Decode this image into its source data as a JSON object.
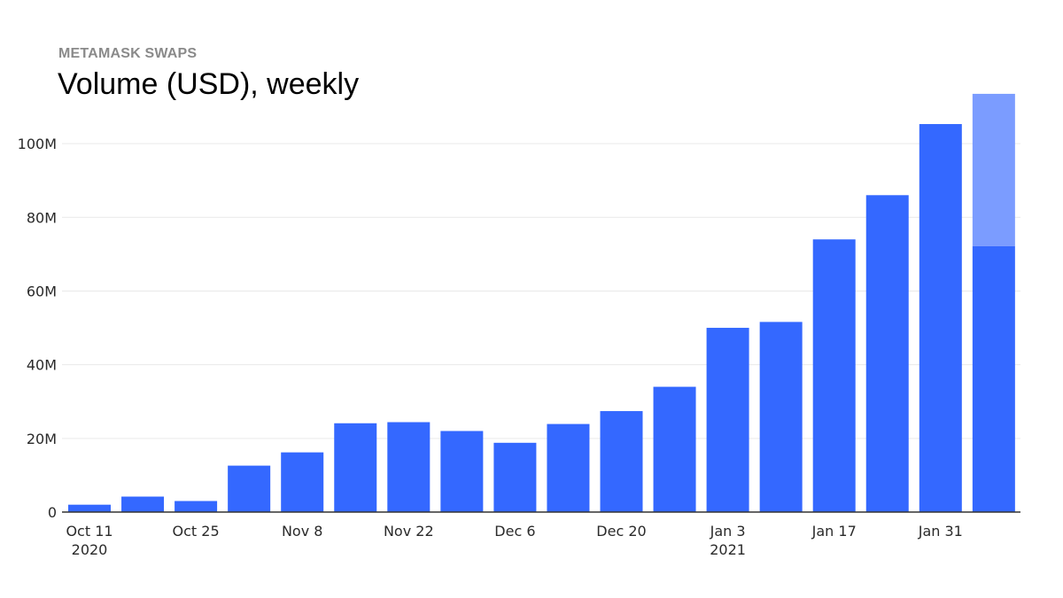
{
  "header": {
    "kicker": "METAMASK SWAPS",
    "title": "Volume (USD), weekly"
  },
  "colors": {
    "bar": "#3468ff",
    "bar_partial": "#7b9cff",
    "grid": "#e9e9e9",
    "axis": "#333333"
  },
  "chart_data": {
    "type": "bar",
    "title": "Volume (USD), weekly",
    "xlabel": "",
    "ylabel": "",
    "ylim": [
      0,
      113000000
    ],
    "grid": true,
    "legend": "none",
    "x": [
      "2020-10-11",
      "2020-10-18",
      "2020-10-25",
      "2020-11-01",
      "2020-11-08",
      "2020-11-15",
      "2020-11-22",
      "2020-11-29",
      "2020-12-06",
      "2020-12-13",
      "2020-12-20",
      "2020-12-27",
      "2021-01-03",
      "2021-01-10",
      "2021-01-17",
      "2021-01-24",
      "2021-01-31",
      "2021-02-07"
    ],
    "series": [
      {
        "values": [
          2000000,
          4200000,
          3000000,
          12600000,
          16200000,
          24100000,
          24400000,
          22000000,
          18800000,
          23900000,
          27400000,
          34000000,
          50000000,
          51600000,
          74000000,
          86000000,
          105300000,
          72200000
        ]
      },
      {
        "values": [
          0,
          0,
          0,
          0,
          0,
          0,
          0,
          0,
          0,
          0,
          0,
          0,
          0,
          0,
          0,
          0,
          0,
          41300000
        ]
      }
    ],
    "y_ticks": [
      {
        "value": 0,
        "label": "0"
      },
      {
        "value": 20000000,
        "label": "20M"
      },
      {
        "value": 40000000,
        "label": "40M"
      },
      {
        "value": 60000000,
        "label": "60M"
      },
      {
        "value": 80000000,
        "label": "80M"
      },
      {
        "value": 100000000,
        "label": "100M"
      }
    ],
    "x_ticks": [
      {
        "index": 0,
        "label": "Oct 11",
        "sub": "2020"
      },
      {
        "index": 2,
        "label": "Oct 25",
        "sub": ""
      },
      {
        "index": 4,
        "label": "Nov 8",
        "sub": ""
      },
      {
        "index": 6,
        "label": "Nov 22",
        "sub": ""
      },
      {
        "index": 8,
        "label": "Dec 6",
        "sub": ""
      },
      {
        "index": 10,
        "label": "Dec 20",
        "sub": ""
      },
      {
        "index": 12,
        "label": "Jan 3",
        "sub": "2021"
      },
      {
        "index": 14,
        "label": "Jan 17",
        "sub": ""
      },
      {
        "index": 16,
        "label": "Jan 31",
        "sub": ""
      }
    ]
  }
}
